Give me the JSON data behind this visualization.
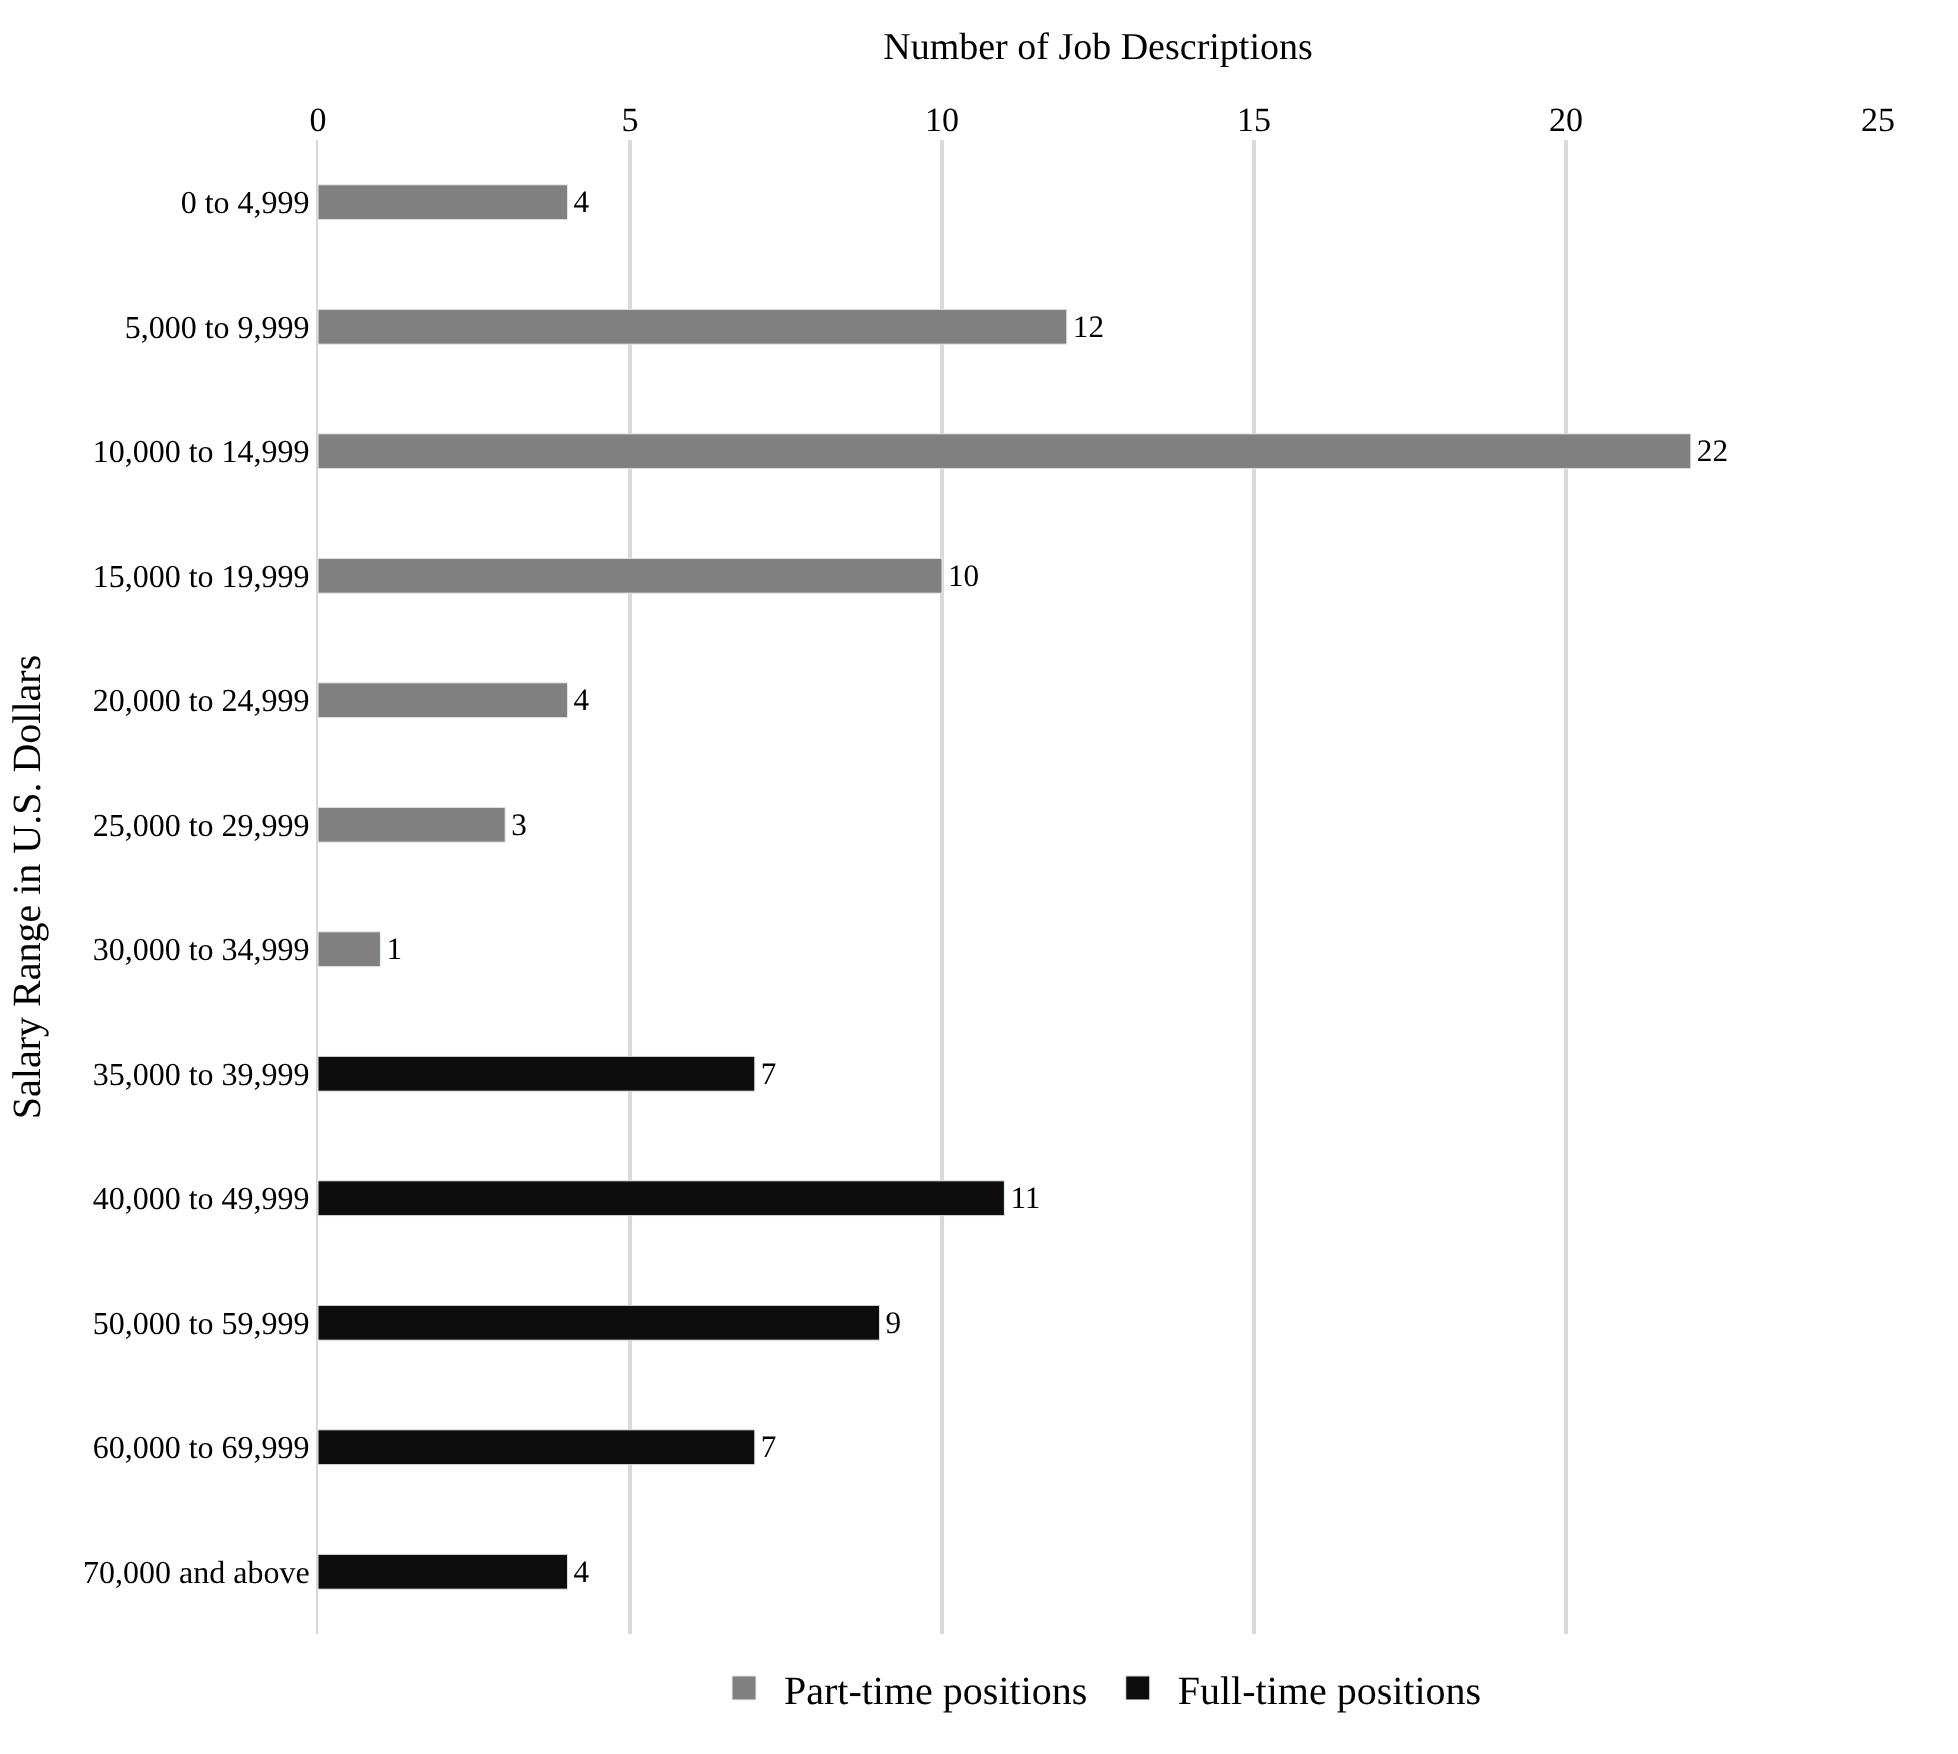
{
  "chart_data": {
    "type": "bar",
    "orientation": "horizontal",
    "xlabel": "Number of Job Descriptions",
    "ylabel": "Salary Range in U.S. Dollars",
    "categories": [
      "0 to 4,999",
      "5,000 to 9,999",
      "10,000 to 14,999",
      "15,000 to 19,999",
      "20,000 to 24,999",
      "25,000 to 29,999",
      "30,000 to 34,999",
      "35,000 to 39,999",
      "40,000 to 49,999",
      "50,000 to 59,999",
      "60,000 to 69,999",
      "70,000 and above"
    ],
    "series": [
      {
        "name": "Part-time positions",
        "color": "#808080",
        "values": [
          4,
          12,
          22,
          10,
          4,
          3,
          1,
          null,
          null,
          null,
          null,
          null
        ]
      },
      {
        "name": "Full-time positions",
        "color": "#0d0d0d",
        "values": [
          null,
          null,
          null,
          null,
          null,
          null,
          null,
          7,
          11,
          9,
          7,
          4
        ]
      }
    ],
    "xlim": [
      0,
      25
    ],
    "xticks": [
      0,
      5,
      10,
      15,
      20,
      25
    ],
    "grid": "x",
    "legend": "bottom",
    "data_labels": true
  }
}
